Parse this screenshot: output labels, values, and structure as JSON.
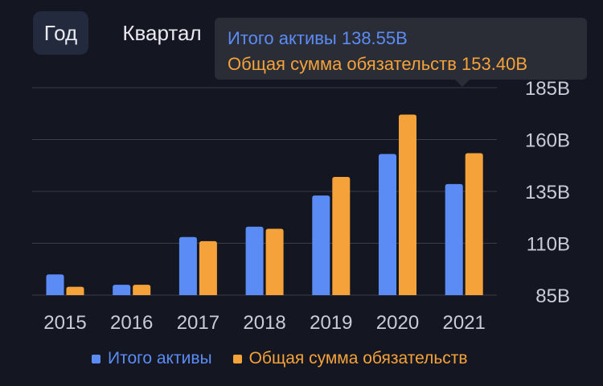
{
  "tabs": [
    {
      "label": "Год",
      "active": true
    },
    {
      "label": "Квартал",
      "active": false
    }
  ],
  "tooltip": {
    "line1": "Итого активы 138.55B",
    "line2": "Общая сумма обязательств 153.40B"
  },
  "colors": {
    "background": "#141721",
    "assets": "#5b8cf5",
    "liabilities": "#f5a23a",
    "grid": "#3a3e4a"
  },
  "chart_data": {
    "type": "bar",
    "categories": [
      "2015",
      "2016",
      "2017",
      "2018",
      "2019",
      "2020",
      "2021"
    ],
    "series": [
      {
        "name": "Итого активы",
        "values": [
          95,
          90,
          113,
          118,
          133,
          153,
          138.55
        ]
      },
      {
        "name": "Общая сумма обязательств",
        "values": [
          89,
          90,
          111,
          117,
          142,
          172,
          153.4
        ]
      }
    ],
    "ylim": [
      85,
      185
    ],
    "yticks": [
      85,
      110,
      135,
      160,
      185
    ],
    "ytick_labels": [
      "85B",
      "110B",
      "135B",
      "160B",
      "185B"
    ],
    "grid": true,
    "axis_side": "right",
    "legend_position": "bottom"
  }
}
